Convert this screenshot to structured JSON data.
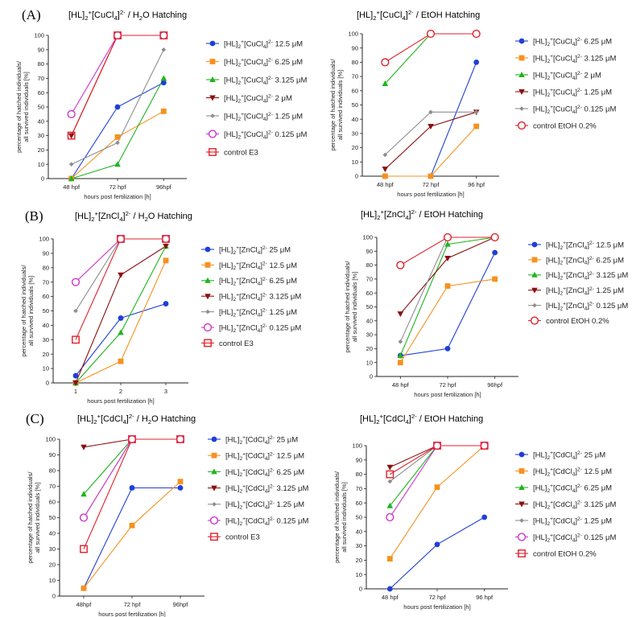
{
  "colors": {
    "blue": "#1f3fd6",
    "orange": "#f5921e",
    "green": "#1db51d",
    "darkred": "#8c1010",
    "gray": "#8e8e8e",
    "magenta": "#cc33cc",
    "red": "#e0202a"
  },
  "chart_data": [
    {
      "type": "line",
      "panel_label": "(A)",
      "title": "[HL]2+[CuCl4]2- / H2O Hatching",
      "xlabel": "hours post fertilization [h]",
      "ylabel": "percentage of hatched individuals/ all survived individuals [%]",
      "categories": [
        "48 hpf",
        "72 hpf",
        "96hpf"
      ],
      "ylim": [
        0,
        100
      ],
      "yticks": [
        0,
        10,
        20,
        30,
        40,
        50,
        60,
        70,
        80,
        90,
        100
      ],
      "legend_position": "right",
      "series": [
        {
          "name": "[HL]2+[CuCl4]2- 12.5 μM",
          "color": "blue",
          "marker": "circle",
          "values": [
            0,
            50,
            67
          ]
        },
        {
          "name": "[HL]2+[CuCl4]2- 6.25 μM",
          "color": "orange",
          "marker": "square",
          "values": [
            0,
            29,
            47
          ]
        },
        {
          "name": "[HL]2+[CuCl4]2- 3.125 μM",
          "color": "green",
          "marker": "triangle",
          "values": [
            0,
            10,
            70
          ]
        },
        {
          "name": "[HL]2+[CuCl4]2- 2 μM",
          "color": "darkred",
          "marker": "triangle-down",
          "values": [
            30,
            100,
            100
          ]
        },
        {
          "name": "[HL]2+[CuCl4]2- 1.25 μM",
          "color": "gray",
          "marker": "diamond",
          "values": [
            10,
            25,
            90
          ]
        },
        {
          "name": "[HL]2+[CuCl4]2- 0.125 μM",
          "color": "magenta",
          "marker": "open-circle",
          "values": [
            45,
            100,
            100
          ]
        },
        {
          "name": "control E3",
          "color": "red",
          "marker": "open-square",
          "values": [
            30,
            100,
            100
          ]
        }
      ]
    },
    {
      "type": "line",
      "panel_label": "",
      "title": "[HL]2+[CuCl4]2- / EtOH Hatching",
      "xlabel": "hours post fertilization [h]",
      "ylabel": "percentage of hatched individuals/ all survived individuals [%]",
      "categories": [
        "48 hpf",
        "72 hpf",
        "96 hpf"
      ],
      "ylim": [
        0,
        100
      ],
      "yticks": [
        0,
        10,
        20,
        30,
        40,
        50,
        60,
        70,
        80,
        90,
        100
      ],
      "legend_position": "right",
      "series": [
        {
          "name": "[HL]2+[CuCl4]2- 6.25 μM",
          "color": "blue",
          "marker": "circle",
          "values": [
            0,
            0,
            80
          ]
        },
        {
          "name": "[HL]2+[CuCl4]2- 3.125 μM",
          "color": "orange",
          "marker": "square",
          "values": [
            0,
            0,
            35
          ]
        },
        {
          "name": "[HL]2+[CuCl4]2- 2 μM",
          "color": "green",
          "marker": "triangle",
          "values": [
            65,
            100,
            100
          ]
        },
        {
          "name": "[HL]2+[CuCl4]2- 1.25 μM",
          "color": "darkred",
          "marker": "triangle-down",
          "values": [
            5,
            35,
            45
          ]
        },
        {
          "name": "[HL]2+[CuCl4]2- 0.125 μM",
          "color": "gray",
          "marker": "diamond",
          "values": [
            15,
            45,
            45
          ]
        },
        {
          "name": "control EtOH 0.2%",
          "color": "red",
          "marker": "open-circle",
          "values": [
            80,
            100,
            100
          ]
        }
      ]
    },
    {
      "type": "line",
      "panel_label": "(B)",
      "title": "[HL]2+[ZnCl4]2- / H2O  Hatching",
      "xlabel": "hours post fertilization [h]",
      "ylabel": "percentage of hatched individuals/ all survived individuals [%]",
      "categories": [
        "1",
        "2",
        "3"
      ],
      "ylim": [
        0,
        100
      ],
      "yticks": [
        0,
        10,
        20,
        30,
        40,
        50,
        60,
        70,
        80,
        90,
        100
      ],
      "legend_position": "right",
      "series": [
        {
          "name": "[HL]2+[ZnCl4]2- 25 μM",
          "color": "blue",
          "marker": "circle",
          "values": [
            5,
            45,
            55
          ]
        },
        {
          "name": "[HL]2+[ZnCl4]2- 12.5 μM",
          "color": "orange",
          "marker": "square",
          "values": [
            0,
            15,
            85
          ]
        },
        {
          "name": "[HL]2+[ZnCl4]2- 6.25 μM",
          "color": "green",
          "marker": "triangle",
          "values": [
            0,
            35,
            95
          ]
        },
        {
          "name": "[HL]2+[ZnCl4]2- 3.125 μM",
          "color": "darkred",
          "marker": "triangle-down",
          "values": [
            0,
            75,
            95
          ]
        },
        {
          "name": "[HL]2+[ZnCl4]2- 1.25 μM",
          "color": "gray",
          "marker": "diamond",
          "values": [
            50,
            100,
            100
          ]
        },
        {
          "name": "[HL]2+[ZnCl4]2- 0.125 μM",
          "color": "magenta",
          "marker": "open-circle",
          "values": [
            70,
            100,
            100
          ]
        },
        {
          "name": "control E3",
          "color": "red",
          "marker": "open-square",
          "values": [
            30,
            100,
            100
          ]
        }
      ]
    },
    {
      "type": "line",
      "panel_label": "",
      "title": "[HL]2+[ZnCl4]2- / EtOH  Hatching",
      "xlabel": "hours post fertilization [h]",
      "ylabel": "percentage of hatched individuals/ all survived individuals [%]",
      "categories": [
        "48 hpf",
        "72 hpf",
        "96hpf"
      ],
      "ylim": [
        0,
        100
      ],
      "yticks": [
        0,
        10,
        20,
        30,
        40,
        50,
        60,
        70,
        80,
        90,
        100
      ],
      "legend_position": "right",
      "series": [
        {
          "name": "[HL]2+[ZnCl4]2- 12.5 μM",
          "color": "blue",
          "marker": "circle",
          "values": [
            15,
            20,
            89
          ]
        },
        {
          "name": "[HL]2+[ZnCl4]2- 6.25 μM",
          "color": "orange",
          "marker": "square",
          "values": [
            10,
            65,
            70
          ]
        },
        {
          "name": "[HL]2+[ZnCl4]2- 3.125 μM",
          "color": "green",
          "marker": "triangle",
          "values": [
            15,
            95,
            100
          ]
        },
        {
          "name": "[HL]2+[ZnCl4]2- 1.25 μM",
          "color": "darkred",
          "marker": "triangle-down",
          "values": [
            45,
            85,
            100
          ]
        },
        {
          "name": "[HL]2+[ZnCl4]2- 0.125 μM",
          "color": "gray",
          "marker": "diamond",
          "values": [
            25,
            100,
            100
          ]
        },
        {
          "name": "control EtOH 0.2%",
          "color": "red",
          "marker": "open-circle",
          "values": [
            80,
            100,
            100
          ]
        }
      ]
    },
    {
      "type": "line",
      "panel_label": "(C)",
      "title": "[HL]2+[CdCl4]2- / H2O Hatching",
      "xlabel": "hours post fertilization [h]",
      "ylabel": "percentage of hatched individuals/ all survived individuals [%]",
      "categories": [
        "48hpf",
        "72 hpf",
        "96hpf"
      ],
      "ylim": [
        0,
        100
      ],
      "yticks": [
        0,
        10,
        20,
        30,
        40,
        50,
        60,
        70,
        80,
        90,
        100
      ],
      "legend_position": "right",
      "series": [
        {
          "name": "[HL]2+[CdCl4]2- 25 μM",
          "color": "blue",
          "marker": "circle",
          "values": [
            5,
            69,
            69
          ]
        },
        {
          "name": "[HL]2+[CdCl4]2- 12.5 μM",
          "color": "orange",
          "marker": "square",
          "values": [
            5,
            45,
            73
          ]
        },
        {
          "name": "[HL]2+[CdCl4]2- 6.25 μM",
          "color": "green",
          "marker": "triangle",
          "values": [
            65,
            100,
            100
          ]
        },
        {
          "name": "[HL]2+[CdCl4]2- 3.125 μM",
          "color": "darkred",
          "marker": "triangle-down",
          "values": [
            95,
            100,
            100
          ]
        },
        {
          "name": "[HL]2+[CdCl4]2- 1.25 μM",
          "color": "gray",
          "marker": "diamond",
          "values": [
            50,
            100,
            100
          ]
        },
        {
          "name": "[HL]2+[CdCl4]2- 0.125 μM",
          "color": "magenta",
          "marker": "open-circle",
          "values": [
            50,
            100,
            100
          ]
        },
        {
          "name": "control E3",
          "color": "red",
          "marker": "open-square",
          "values": [
            30,
            100,
            100
          ]
        }
      ]
    },
    {
      "type": "line",
      "panel_label": "",
      "title": "[HL]2+[CdCl4]2- / EtOH Hatching",
      "xlabel": "hours post fertilization [h]",
      "ylabel": "percentage of hatched individuals/ all survived individuals [%]",
      "categories": [
        "48 hpf",
        "72 hpf",
        "96 hpf"
      ],
      "ylim": [
        0,
        100
      ],
      "yticks": [
        0,
        10,
        20,
        30,
        40,
        50,
        60,
        70,
        80,
        90,
        100
      ],
      "legend_position": "right",
      "series": [
        {
          "name": "[HL]2+[CdCl4]2- 25 μM",
          "color": "blue",
          "marker": "circle",
          "values": [
            0,
            31,
            50
          ]
        },
        {
          "name": "[HL]2+[CdCl4]2- 12.5 μM",
          "color": "orange",
          "marker": "square",
          "values": [
            21,
            71,
            100
          ]
        },
        {
          "name": "[HL]2+[CdCl4]2- 6.25 μM",
          "color": "green",
          "marker": "triangle",
          "values": [
            58,
            100,
            100
          ]
        },
        {
          "name": "[HL]2+[CdCl4]2- 3.125 μM",
          "color": "darkred",
          "marker": "triangle-down",
          "values": [
            85,
            100,
            100
          ]
        },
        {
          "name": "[HL]2+[CdCl4]2- 1.25 μM",
          "color": "gray",
          "marker": "diamond",
          "values": [
            75,
            100,
            100
          ]
        },
        {
          "name": "[HL]2+[CdCl4]2- 0.125 μM",
          "color": "magenta",
          "marker": "open-circle",
          "values": [
            50,
            100,
            100
          ]
        },
        {
          "name": "control EtOH 0.2%",
          "color": "red",
          "marker": "open-square",
          "values": [
            80,
            100,
            100
          ]
        }
      ]
    }
  ]
}
